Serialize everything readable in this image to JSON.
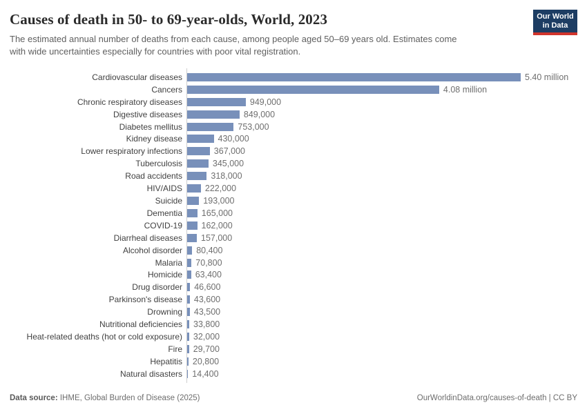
{
  "header": {
    "title": "Causes of death in 50- to 69-year-olds, World, 2023",
    "subtitle_line1": "The estimated annual number of deaths from each cause, among people aged 50–69 years old. Estimates come",
    "subtitle_line2": "with wide uncertainties especially for countries with poor vital registration.",
    "logo": {
      "line1": "Our World",
      "line2": "in Data"
    }
  },
  "chart_data": {
    "type": "bar",
    "orientation": "horizontal",
    "title": "Causes of death in 50- to 69-year-olds, World, 2023",
    "xlabel": "",
    "ylabel": "",
    "grid": false,
    "legend": false,
    "xlim": [
      0,
      5400000
    ],
    "bar_color": "#7890ba",
    "categories": [
      "Cardiovascular diseases",
      "Cancers",
      "Chronic respiratory diseases",
      "Digestive diseases",
      "Diabetes mellitus",
      "Kidney disease",
      "Lower respiratory infections",
      "Tuberculosis",
      "Road accidents",
      "HIV/AIDS",
      "Suicide",
      "Dementia",
      "COVID-19",
      "Diarrheal diseases",
      "Alcohol disorder",
      "Malaria",
      "Homicide",
      "Drug disorder",
      "Parkinson's disease",
      "Drowning",
      "Nutritional deficiencies",
      "Heat-related deaths (hot or cold exposure)",
      "Fire",
      "Hepatitis",
      "Natural disasters"
    ],
    "values": [
      5400000,
      4080000,
      949000,
      849000,
      753000,
      430000,
      367000,
      345000,
      318000,
      222000,
      193000,
      165000,
      162000,
      157000,
      80400,
      70800,
      63400,
      46600,
      43600,
      43500,
      33800,
      32000,
      29700,
      20800,
      14400
    ],
    "value_labels": [
      "5.40 million",
      "4.08 million",
      "949,000",
      "849,000",
      "753,000",
      "430,000",
      "367,000",
      "345,000",
      "318,000",
      "222,000",
      "193,000",
      "165,000",
      "162,000",
      "157,000",
      "80,400",
      "70,800",
      "63,400",
      "46,600",
      "43,600",
      "43,500",
      "33,800",
      "32,000",
      "29,700",
      "20,800",
      "14,400"
    ]
  },
  "footer": {
    "datasource_label": "Data source:",
    "datasource_value": " IHME, Global Burden of Disease (2025)",
    "link": "OurWorldinData.org/causes-of-death | CC BY"
  },
  "colors": {
    "bar": "#7890ba",
    "axis": "#cfcfcf",
    "title_text": "#2a2a2a",
    "subtitle_text": "#5f5f5f",
    "category_text": "#3f3f3f",
    "value_text": "#6e6e6e",
    "logo_bg": "#1d3d63",
    "logo_stripe": "#d0342c"
  }
}
